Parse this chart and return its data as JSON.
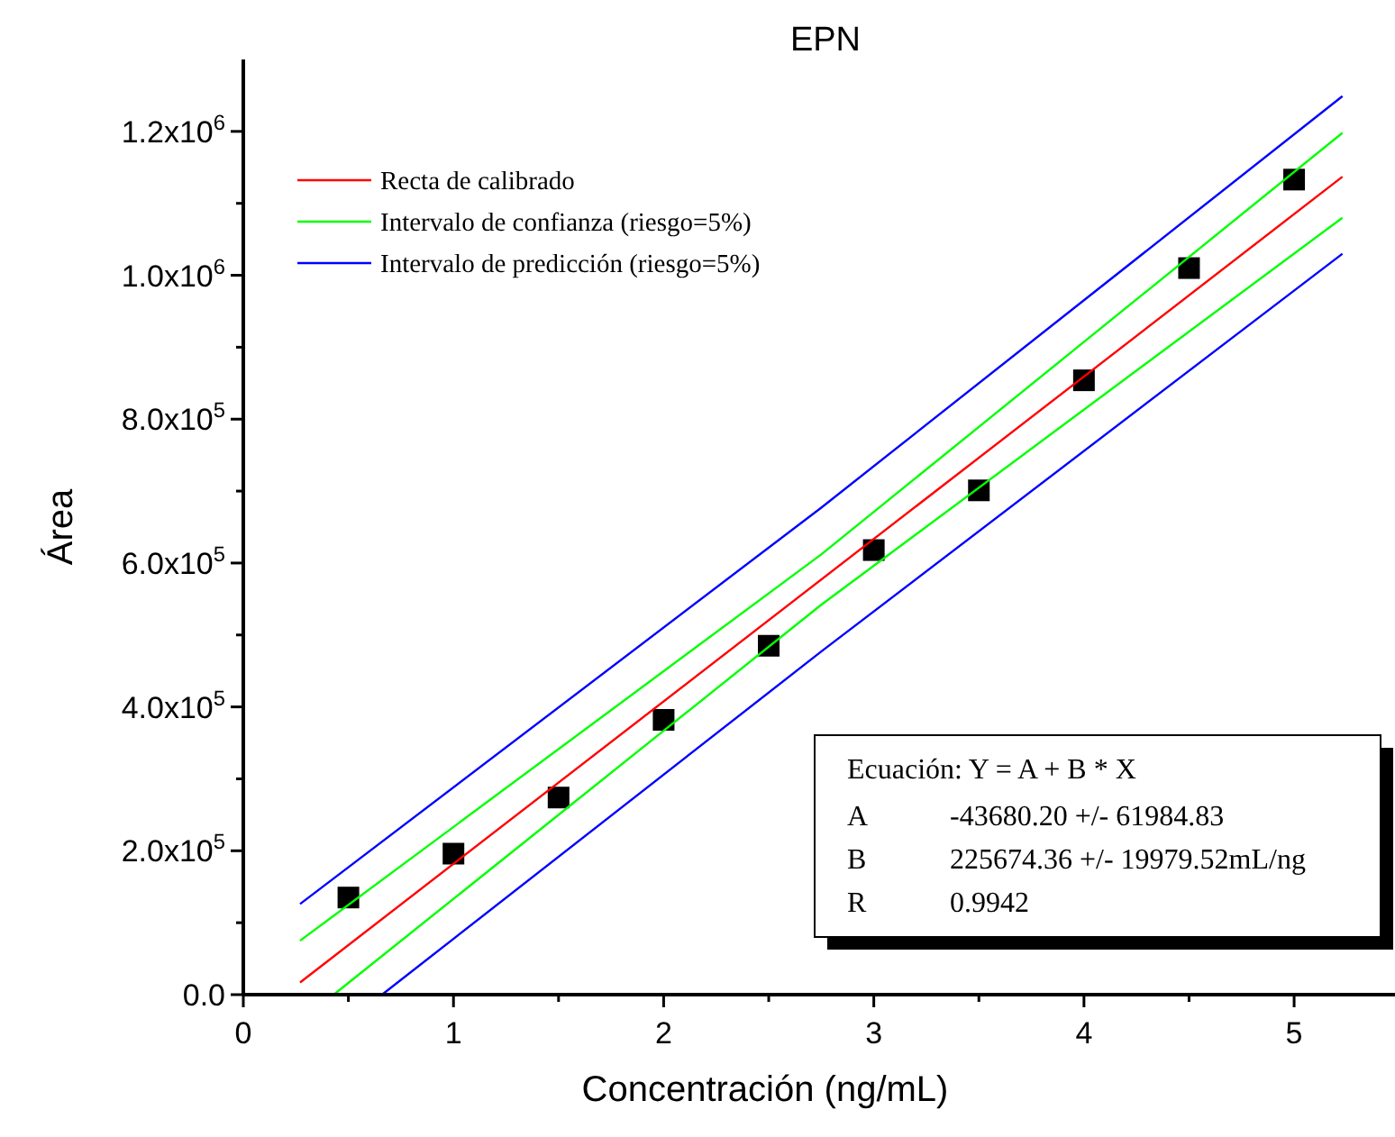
{
  "chart_data": {
    "type": "scatter",
    "title": "EPN",
    "xlabel": "Concentración (ng/mL)",
    "ylabel": "Área",
    "xlim": [
      0,
      5.48
    ],
    "xticks": [
      0,
      {
        "value": 0.5,
        "label": null
      },
      1,
      {
        "value": 1.5,
        "label": null
      },
      2,
      {
        "value": 2.5,
        "label": null
      },
      3,
      {
        "value": 3.5,
        "label": null
      },
      4,
      {
        "value": 4.5,
        "label": null
      },
      5
    ],
    "ylim": [
      0,
      1300000
    ],
    "yticks": [
      {
        "value": 0,
        "label": "0.0"
      },
      {
        "value": 100000,
        "label": null
      },
      {
        "value": 200000,
        "label": "2.0x10$^{5}$"
      },
      {
        "value": 300000,
        "label": null
      },
      {
        "value": 400000,
        "label": "4.0x10$^{5}$"
      },
      {
        "value": 500000,
        "label": null
      },
      {
        "value": 600000,
        "label": "6.0x10$^{5}$"
      },
      {
        "value": 700000,
        "label": null
      },
      {
        "value": 800000,
        "label": "8.0x10$^{5}$"
      },
      {
        "value": 900000,
        "label": null
      },
      {
        "value": 1000000,
        "label": "1.0x10$^{6}$"
      },
      {
        "value": 1100000,
        "label": null
      },
      {
        "value": 1200000,
        "label": "1.2x10$^{6}$"
      }
    ],
    "grid": false,
    "legend": "top left",
    "series": [
      {
        "color": "#000000",
        "marker": "square",
        "x": [
          0.5,
          1,
          1.5,
          2,
          2.5,
          3,
          3.5,
          4,
          4.5,
          5
        ],
        "values": [
          135000,
          196000,
          274000,
          382000,
          485000,
          618000,
          701000,
          854000,
          1010000,
          1133000
        ]
      },
      {
        "type": "line",
        "name": "Recta de calibrado",
        "color": "#ff0000",
        "marker": "none",
        "x": [
          0.27,
          5.23
        ],
        "values": [
          17000,
          1137000
        ]
      },
      {
        "type": "line",
        "name": "Intervalo de confianza (riesgo=5%)",
        "color": "#00ff00",
        "marker": "none",
        "x": [
          0.27,
          2.75,
          5.23
        ],
        "values": [
          75000,
          612000,
          1198000
        ]
      },
      {
        "type": "line",
        "color": "#00ff00",
        "marker": "none",
        "x": [
          0.43,
          2.75,
          5.23
        ],
        "values": [
          0,
          542000,
          1080000
        ]
      },
      {
        "type": "line",
        "name": "Intervalo de predicción (riesgo=5%)",
        "color": "#0000ff",
        "marker": "none",
        "x": [
          0.27,
          2.75,
          5.23
        ],
        "values": [
          126000,
          677000,
          1249000
        ]
      },
      {
        "type": "line",
        "color": "#0000ff",
        "marker": "none",
        "x": [
          0.66,
          2.75,
          5.23
        ],
        "values": [
          0,
          477000,
          1030000
        ]
      }
    ],
    "annotations": [
      "Ecuación: Y = A + B * X",
      "A",
      "-43680.20 +/- 61984.83",
      "B",
      "225674.36 +/- 19979.52mL/ng",
      "R",
      "0.9942"
    ]
  }
}
